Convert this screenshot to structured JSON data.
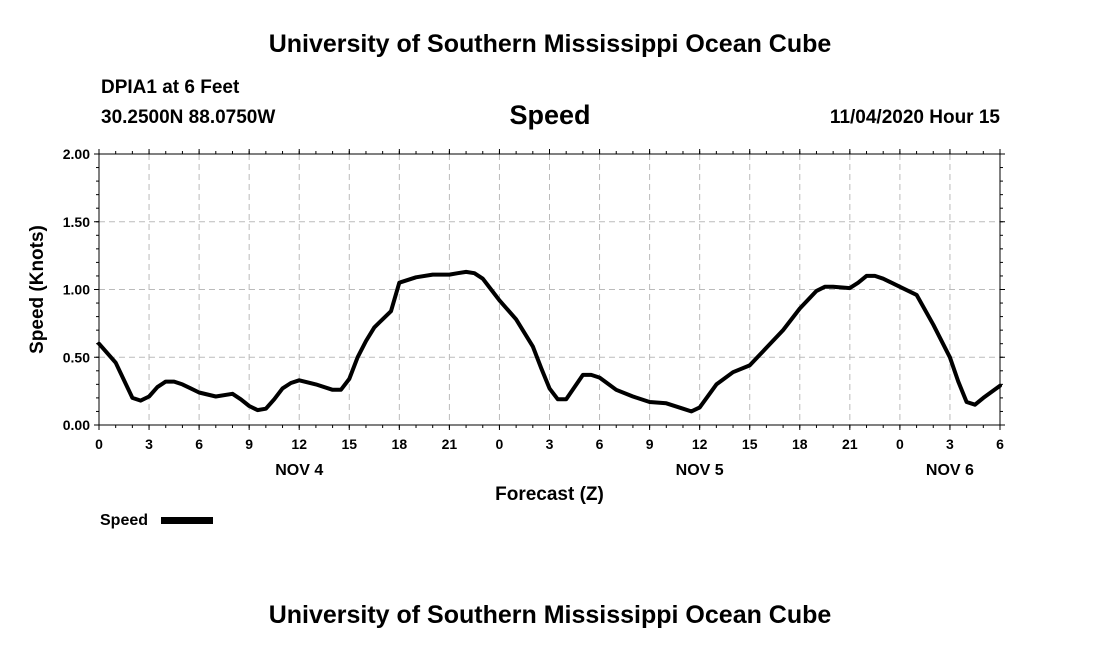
{
  "header": {
    "title_top": "University of Southern Mississippi Ocean Cube",
    "station": "DPIA1 at 6 Feet",
    "coords": "30.2500N 88.0750W",
    "subtitle": "Speed",
    "datetime": "11/04/2020 Hour 15",
    "title_bottom": "University of Southern Mississippi Ocean Cube"
  },
  "chart_data": {
    "type": "line",
    "title": "Speed",
    "xlabel": "Forecast (Z)",
    "ylabel": "Speed (Knots)",
    "ylim": [
      0,
      2
    ],
    "xlim": [
      0,
      54
    ],
    "x_unit": "hours from 11/04/2020 00Z",
    "y_ticks": [
      "0.00",
      "0.50",
      "1.00",
      "1.50",
      "2.00"
    ],
    "x_tick_labels": [
      "0",
      "3",
      "6",
      "9",
      "12",
      "15",
      "18",
      "21",
      "0",
      "3",
      "6",
      "9",
      "12",
      "15",
      "18",
      "21",
      "0",
      "3",
      "6"
    ],
    "date_labels": [
      {
        "label": "NOV 4",
        "hour": 12
      },
      {
        "label": "NOV 5",
        "hour": 36
      },
      {
        "label": "NOV 6",
        "hour": 51
      }
    ],
    "grid": true,
    "legend": {
      "position": "bottom-left"
    },
    "series": [
      {
        "name": "Speed",
        "color": "#000000",
        "x": [
          0,
          1,
          2,
          2.5,
          3,
          3.5,
          4,
          4.5,
          5,
          5.5,
          6,
          7,
          8,
          8.5,
          9,
          9.5,
          10,
          10.5,
          11,
          11.5,
          12,
          13,
          14,
          14.5,
          15,
          15.5,
          16,
          16.5,
          17,
          17.5,
          18,
          19,
          20,
          21,
          21.5,
          22,
          22.5,
          23,
          23.5,
          24,
          25,
          26,
          26.5,
          27,
          27.5,
          28,
          28.5,
          29,
          29.5,
          30,
          31,
          32,
          33,
          34,
          35,
          35.5,
          36,
          37,
          38,
          39,
          40,
          41,
          42,
          43,
          43.5,
          44,
          45,
          45.5,
          46,
          46.5,
          47,
          47.5,
          48,
          49,
          50,
          51,
          51.5,
          52,
          52.5,
          53,
          54
        ],
        "y": [
          0.6,
          0.46,
          0.2,
          0.18,
          0.21,
          0.28,
          0.32,
          0.32,
          0.3,
          0.27,
          0.24,
          0.21,
          0.23,
          0.19,
          0.14,
          0.11,
          0.12,
          0.19,
          0.27,
          0.31,
          0.33,
          0.3,
          0.26,
          0.26,
          0.34,
          0.5,
          0.62,
          0.72,
          0.78,
          0.84,
          1.05,
          1.09,
          1.11,
          1.11,
          1.12,
          1.13,
          1.12,
          1.08,
          1.0,
          0.92,
          0.78,
          0.58,
          0.42,
          0.27,
          0.19,
          0.19,
          0.28,
          0.37,
          0.37,
          0.35,
          0.26,
          0.21,
          0.17,
          0.16,
          0.12,
          0.1,
          0.13,
          0.3,
          0.39,
          0.44,
          0.57,
          0.7,
          0.86,
          0.99,
          1.02,
          1.02,
          1.01,
          1.05,
          1.1,
          1.1,
          1.08,
          1.05,
          1.02,
          0.96,
          0.74,
          0.5,
          0.32,
          0.17,
          0.15,
          0.2,
          0.29
        ]
      }
    ]
  }
}
